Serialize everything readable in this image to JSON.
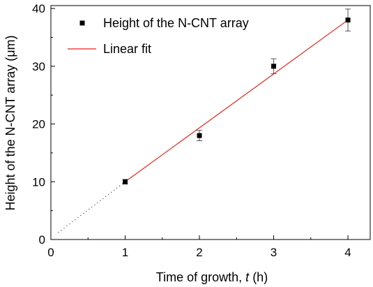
{
  "chart_data": {
    "type": "scatter",
    "xlabel_prefix": "Time of growth, ",
    "xlabel_var": "t",
    "xlabel_suffix": " (h)",
    "ylabel": "Height of the N-CNT array (μm)",
    "xlim": [
      0,
      4.3
    ],
    "ylim": [
      0,
      40.5
    ],
    "x_ticks": [
      0,
      1,
      2,
      3,
      4
    ],
    "y_ticks": [
      0,
      10,
      20,
      30,
      40
    ],
    "grid": false,
    "legend_position": "top-left",
    "series": [
      {
        "name": "Height of the N-CNT array",
        "kind": "points",
        "x": [
          1,
          2,
          3,
          4
        ],
        "y": [
          10,
          18,
          30,
          38
        ],
        "err": [
          0.4,
          0.9,
          1.3,
          1.9
        ],
        "color": "#000000"
      },
      {
        "name": "Linear fit",
        "kind": "line",
        "x": [
          1,
          4
        ],
        "y": [
          10,
          38
        ],
        "color": "#e8231b"
      },
      {
        "name": "",
        "kind": "dotted-extrapolation",
        "x": [
          0.1,
          1
        ],
        "y": [
          1.2,
          10
        ],
        "color": "#000000"
      }
    ]
  }
}
